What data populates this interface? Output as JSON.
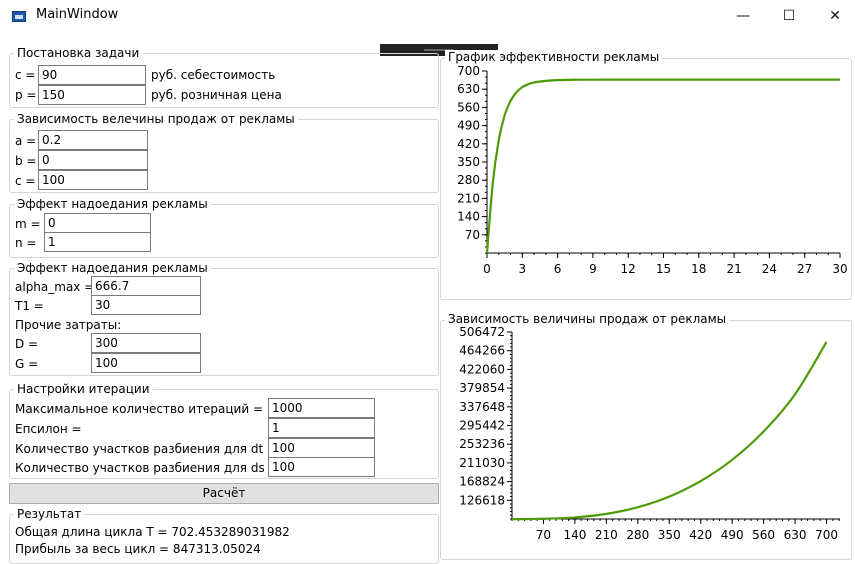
{
  "window": {
    "title": "MainWindow",
    "minimize_glyph": "—",
    "maximize_glyph": "☐",
    "close_glyph": "✕"
  },
  "problem": {
    "title": "Постановка задачи",
    "c_label": "c =",
    "c_value": "90",
    "c_unit": "руб. себестоимость",
    "p_label": "p =",
    "p_value": "150",
    "p_unit": "руб. розничная цена"
  },
  "sales_dep": {
    "title": "Зависимость велечины продаж от рекламы",
    "a_label": "a =",
    "a_value": "0.2",
    "b_label": "b =",
    "b_value": "0",
    "c_label": "c =",
    "c_value": "100"
  },
  "fatigue1": {
    "title": "Эффект надоедания рекламы",
    "m_label": "m =",
    "m_value": "0",
    "n_label": "n =",
    "n_value": "1"
  },
  "fatigue2": {
    "title": "Эффект надоедания рекламы",
    "alpha_label": "alpha_max =",
    "alpha_value": "666.7",
    "t1_label": "T1 =",
    "t1_value": "30",
    "other_label": "Прочие затраты:",
    "d_label": "D =",
    "d_value": "300",
    "g_label": "G =",
    "g_value": "100"
  },
  "iteration": {
    "title": "Настройки итерации",
    "max_iter_label": "Максимальное количество итераций =",
    "max_iter_value": "1000",
    "eps_label": "Епсилон =",
    "eps_value": "1",
    "dt_label": "Количество участков разбиения для dt =",
    "dt_value": "100",
    "ds_label": "Количество участков разбиения для ds =",
    "ds_value": "100"
  },
  "calc_button": "Расчёт",
  "result": {
    "title": "Результат",
    "line1": "Общая длина цикла T =  702.453289031982",
    "line2": "Прибыль за весь цикл = 847313.05024"
  },
  "colors": {
    "series": "#4e9a06",
    "axis": "#000000",
    "group_border": "#d5d5d5"
  },
  "chart_data": [
    {
      "type": "line",
      "title": "График эффективности рекламы",
      "xlabel": "",
      "ylabel": "",
      "xlim": [
        0,
        30
      ],
      "ylim": [
        0,
        700
      ],
      "x_ticks": [
        0,
        3,
        6,
        9,
        12,
        15,
        18,
        21,
        24,
        27,
        30
      ],
      "y_ticks": [
        70,
        140,
        210,
        280,
        350,
        420,
        490,
        560,
        630,
        700
      ],
      "x": [
        0,
        0.5,
        1,
        1.5,
        2,
        2.5,
        3,
        3.5,
        4,
        5,
        6,
        7,
        8,
        10,
        12,
        15,
        20,
        25,
        30
      ],
      "y": [
        0,
        273,
        434,
        529,
        585,
        618,
        638,
        649,
        656,
        662,
        665,
        666,
        666.5,
        666.7,
        666.7,
        666.7,
        666.7,
        666.7,
        666.7
      ]
    },
    {
      "type": "line",
      "title": "Зависимость величины продаж от рекламы",
      "xlabel": "",
      "ylabel": "",
      "xlim": [
        0,
        730
      ],
      "ylim": [
        84412,
        506472
      ],
      "x_ticks": [
        70,
        140,
        210,
        280,
        350,
        420,
        490,
        560,
        630,
        700
      ],
      "y_ticks": [
        126618,
        168824,
        211030,
        253236,
        295442,
        337648,
        379854,
        422060,
        464266,
        506472
      ],
      "x": [
        0,
        70,
        140,
        210,
        280,
        350,
        420,
        490,
        560,
        630,
        700
      ],
      "y": [
        84000,
        84900,
        88000,
        96000,
        111000,
        135000,
        170000,
        218000,
        282000,
        366000,
        484000
      ]
    }
  ]
}
